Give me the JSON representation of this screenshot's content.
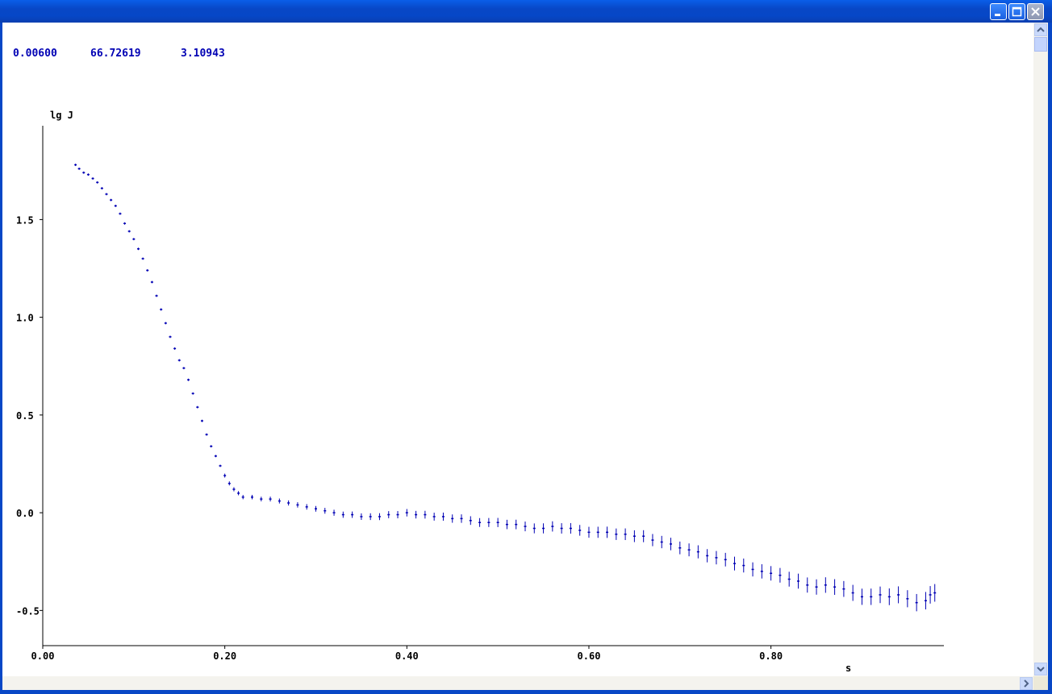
{
  "window": {
    "controls": [
      "minimize-icon",
      "maximize-icon",
      "close-icon"
    ]
  },
  "readout": {
    "v1": "0.00600",
    "v2": "66.72619",
    "v3": "3.10943"
  },
  "colors": {
    "data": "#0000b4",
    "titlebar": "#0847c6"
  },
  "chart_data": {
    "type": "scatter",
    "title": "",
    "xlabel": "s",
    "ylabel": "lg J",
    "xlim": [
      0.0,
      0.99
    ],
    "ylim": [
      -0.68,
      1.98
    ],
    "xticks": [
      "0.00",
      "0.20",
      "0.40",
      "0.60",
      "0.80"
    ],
    "yticks": [
      "-0.5",
      "0.0",
      "0.5",
      "1.0",
      "1.5"
    ],
    "series": [
      {
        "error_bars": true,
        "points": [
          [
            0.036,
            1.78
          ],
          [
            0.04,
            1.76
          ],
          [
            0.045,
            1.74
          ],
          [
            0.05,
            1.73
          ],
          [
            0.055,
            1.71
          ],
          [
            0.06,
            1.69
          ],
          [
            0.065,
            1.66
          ],
          [
            0.07,
            1.63
          ],
          [
            0.075,
            1.6
          ],
          [
            0.08,
            1.57
          ],
          [
            0.085,
            1.53
          ],
          [
            0.09,
            1.48
          ],
          [
            0.095,
            1.44
          ],
          [
            0.1,
            1.4
          ],
          [
            0.105,
            1.35
          ],
          [
            0.11,
            1.3
          ],
          [
            0.115,
            1.24
          ],
          [
            0.12,
            1.18
          ],
          [
            0.125,
            1.11
          ],
          [
            0.13,
            1.04
          ],
          [
            0.135,
            0.97
          ],
          [
            0.14,
            0.9
          ],
          [
            0.145,
            0.84
          ],
          [
            0.15,
            0.78
          ],
          [
            0.155,
            0.74
          ],
          [
            0.16,
            0.68
          ],
          [
            0.165,
            0.61
          ],
          [
            0.17,
            0.54
          ],
          [
            0.175,
            0.47
          ],
          [
            0.18,
            0.4
          ],
          [
            0.185,
            0.34
          ],
          [
            0.19,
            0.29
          ],
          [
            0.195,
            0.24
          ],
          [
            0.2,
            0.19
          ],
          [
            0.205,
            0.15
          ],
          [
            0.21,
            0.12
          ],
          [
            0.215,
            0.1
          ],
          [
            0.22,
            0.08
          ],
          [
            0.23,
            0.08
          ],
          [
            0.24,
            0.07
          ],
          [
            0.25,
            0.07
          ],
          [
            0.26,
            0.06
          ],
          [
            0.27,
            0.05
          ],
          [
            0.28,
            0.04
          ],
          [
            0.29,
            0.03
          ],
          [
            0.3,
            0.02
          ],
          [
            0.31,
            0.01
          ],
          [
            0.32,
            0.0
          ],
          [
            0.33,
            -0.01
          ],
          [
            0.34,
            -0.01
          ],
          [
            0.35,
            -0.02
          ],
          [
            0.36,
            -0.02
          ],
          [
            0.37,
            -0.02
          ],
          [
            0.38,
            -0.01
          ],
          [
            0.39,
            -0.01
          ],
          [
            0.4,
            0.0
          ],
          [
            0.41,
            -0.01
          ],
          [
            0.42,
            -0.01
          ],
          [
            0.43,
            -0.02
          ],
          [
            0.44,
            -0.02
          ],
          [
            0.45,
            -0.03
          ],
          [
            0.46,
            -0.03
          ],
          [
            0.47,
            -0.04
          ],
          [
            0.48,
            -0.05
          ],
          [
            0.49,
            -0.05
          ],
          [
            0.5,
            -0.05
          ],
          [
            0.51,
            -0.06
          ],
          [
            0.52,
            -0.06
          ],
          [
            0.53,
            -0.07
          ],
          [
            0.54,
            -0.08
          ],
          [
            0.55,
            -0.08
          ],
          [
            0.56,
            -0.07
          ],
          [
            0.57,
            -0.08
          ],
          [
            0.58,
            -0.08
          ],
          [
            0.59,
            -0.09
          ],
          [
            0.6,
            -0.1
          ],
          [
            0.61,
            -0.1
          ],
          [
            0.62,
            -0.1
          ],
          [
            0.63,
            -0.11
          ],
          [
            0.64,
            -0.11
          ],
          [
            0.65,
            -0.12
          ],
          [
            0.66,
            -0.12
          ],
          [
            0.67,
            -0.14
          ],
          [
            0.68,
            -0.15
          ],
          [
            0.69,
            -0.16
          ],
          [
            0.7,
            -0.18
          ],
          [
            0.71,
            -0.19
          ],
          [
            0.72,
            -0.2
          ],
          [
            0.73,
            -0.22
          ],
          [
            0.74,
            -0.23
          ],
          [
            0.75,
            -0.24
          ],
          [
            0.76,
            -0.26
          ],
          [
            0.77,
            -0.27
          ],
          [
            0.78,
            -0.29
          ],
          [
            0.79,
            -0.3
          ],
          [
            0.8,
            -0.31
          ],
          [
            0.81,
            -0.32
          ],
          [
            0.82,
            -0.34
          ],
          [
            0.83,
            -0.35
          ],
          [
            0.84,
            -0.37
          ],
          [
            0.85,
            -0.38
          ],
          [
            0.86,
            -0.37
          ],
          [
            0.87,
            -0.38
          ],
          [
            0.88,
            -0.39
          ],
          [
            0.89,
            -0.41
          ],
          [
            0.9,
            -0.43
          ],
          [
            0.91,
            -0.43
          ],
          [
            0.92,
            -0.42
          ],
          [
            0.93,
            -0.43
          ],
          [
            0.94,
            -0.42
          ],
          [
            0.95,
            -0.44
          ],
          [
            0.96,
            -0.46
          ],
          [
            0.97,
            -0.45
          ],
          [
            0.975,
            -0.42
          ],
          [
            0.98,
            -0.41
          ]
        ]
      }
    ]
  }
}
